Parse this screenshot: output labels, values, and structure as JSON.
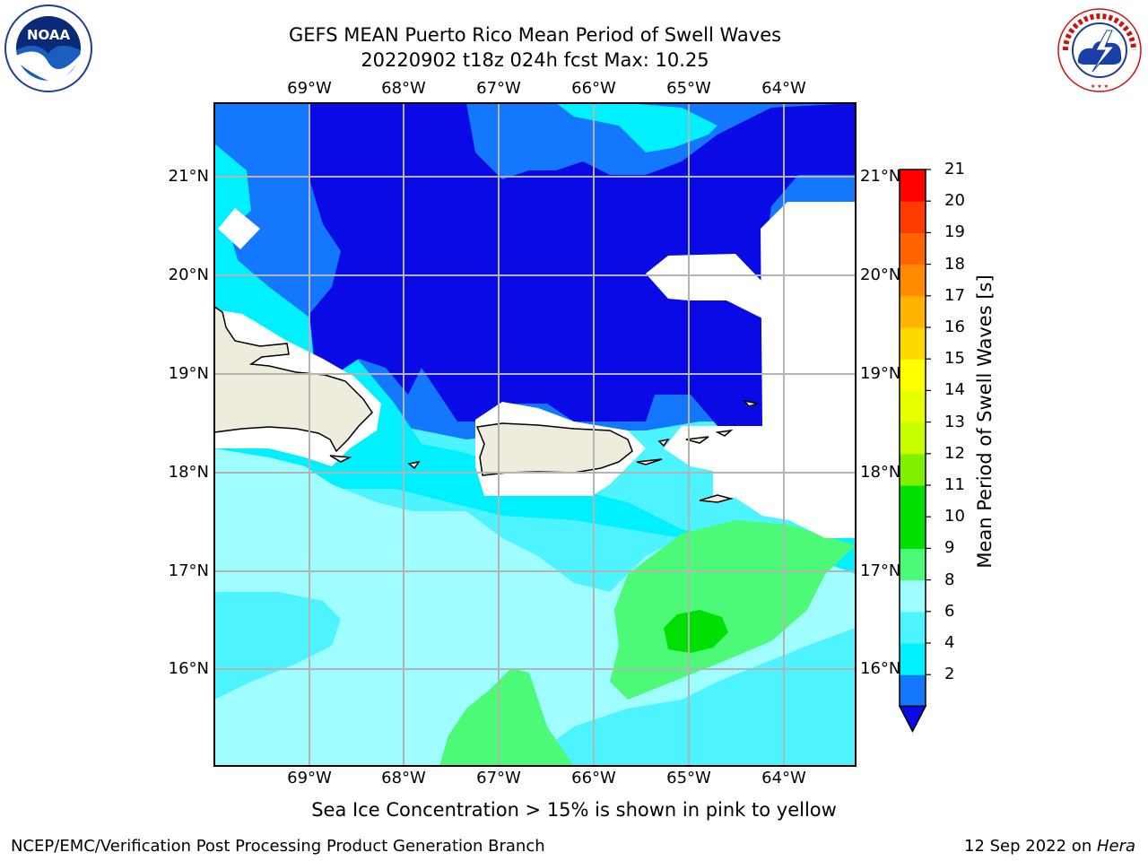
{
  "title": {
    "line1": "GEFS MEAN Puerto Rico Mean Period of Swell Waves",
    "line2": "20220902 t18z 024h fcst   Max: 10.25"
  },
  "logos": {
    "left": "noaa-logo",
    "right": "nws-logo",
    "left_text": "NOAA",
    "right_text": "NATIONAL WEATHER SERVICE"
  },
  "map": {
    "lon_labels": [
      "69°W",
      "68°W",
      "67°W",
      "66°W",
      "65°W",
      "64°W"
    ],
    "lat_labels": [
      "21°N",
      "20°N",
      "19°N",
      "18°N",
      "17°N",
      "16°N"
    ],
    "extent": {
      "lon": [
        -70,
        -63.25
      ],
      "lat": [
        15,
        21.75
      ]
    },
    "land_color": "#eeecdd",
    "zone_colors": {
      "deep": "#0a0ae6",
      "mid": "#1478ff",
      "light": "#00f0ff",
      "pale": "#4df4ff",
      "paler": "#9ffcff",
      "green": "#4cfa78",
      "brightgreen": "#00e000",
      "nodata": "#ffffff"
    }
  },
  "colorbar": {
    "label": "Mean Period of Swell Waves [s]",
    "ticks": [
      "21",
      "20",
      "19",
      "18",
      "17",
      "16",
      "15",
      "14",
      "13",
      "12",
      "11",
      "10",
      "9",
      "8",
      "6",
      "4",
      "2"
    ],
    "colors": [
      "#1478ff",
      "#00f0ff",
      "#4df4ff",
      "#9ffcff",
      "#4cfa78",
      "#00e000",
      "#00e000",
      "#80f000",
      "#c8ff00",
      "#e8ff00",
      "#ffff00",
      "#ffd800",
      "#ffb400",
      "#ff8c00",
      "#ff6400",
      "#ff3c00",
      "#ff0000"
    ],
    "extend_color": "#0a0ae6"
  },
  "caption": "Sea Ice Concentration > 15% is shown in pink to yellow",
  "footer": {
    "left": "NCEP/EMC/Verification Post Processing Product Generation Branch",
    "right_prefix": "12 Sep 2022 on ",
    "right_machine": "Hera"
  }
}
